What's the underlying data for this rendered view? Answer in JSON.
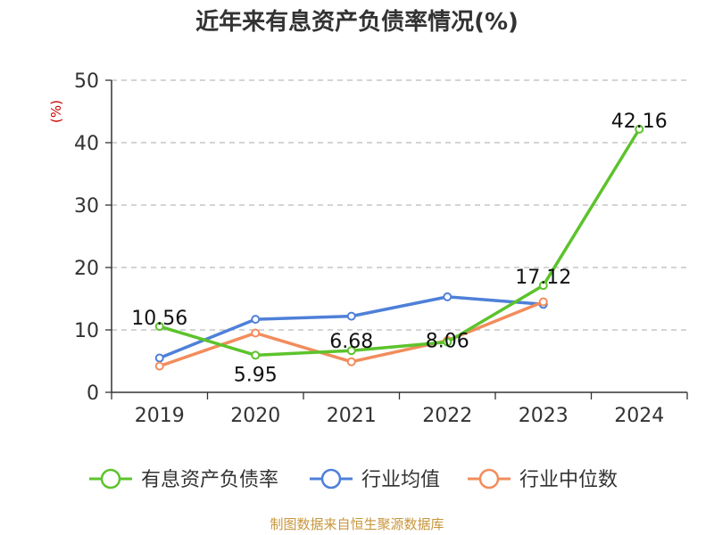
{
  "chart_data": {
    "type": "line",
    "title": "近年来有息资产负债率情况(%)",
    "ylabel": "(%)",
    "xlabel": "",
    "categories": [
      "2019",
      "2020",
      "2021",
      "2022",
      "2023",
      "2024"
    ],
    "ylim": [
      0,
      50
    ],
    "yticks": [
      0,
      10,
      20,
      30,
      40,
      50
    ],
    "grid": true,
    "legend_position": "bottom",
    "series": [
      {
        "name": "有息资产负债率",
        "color": "#5cc32c",
        "values": [
          10.56,
          5.95,
          6.68,
          8.06,
          17.12,
          42.16
        ],
        "labels": [
          "10.56",
          "5.95",
          "6.68",
          "8.06",
          "17.12",
          "42.16"
        ]
      },
      {
        "name": "行业均值",
        "color": "#4e80d8",
        "values": [
          5.5,
          11.7,
          12.2,
          15.3,
          14.1,
          null
        ]
      },
      {
        "name": "行业中位数",
        "color": "#f28c5c",
        "values": [
          4.2,
          9.5,
          4.9,
          8.3,
          14.5,
          null
        ]
      }
    ]
  },
  "source_text": "制图数据来自恒生聚源数据库",
  "colors": {
    "unit_label": "#cc0000",
    "source_text": "#c8963c",
    "grid": "#bbbbbb",
    "axis": "#333333"
  }
}
